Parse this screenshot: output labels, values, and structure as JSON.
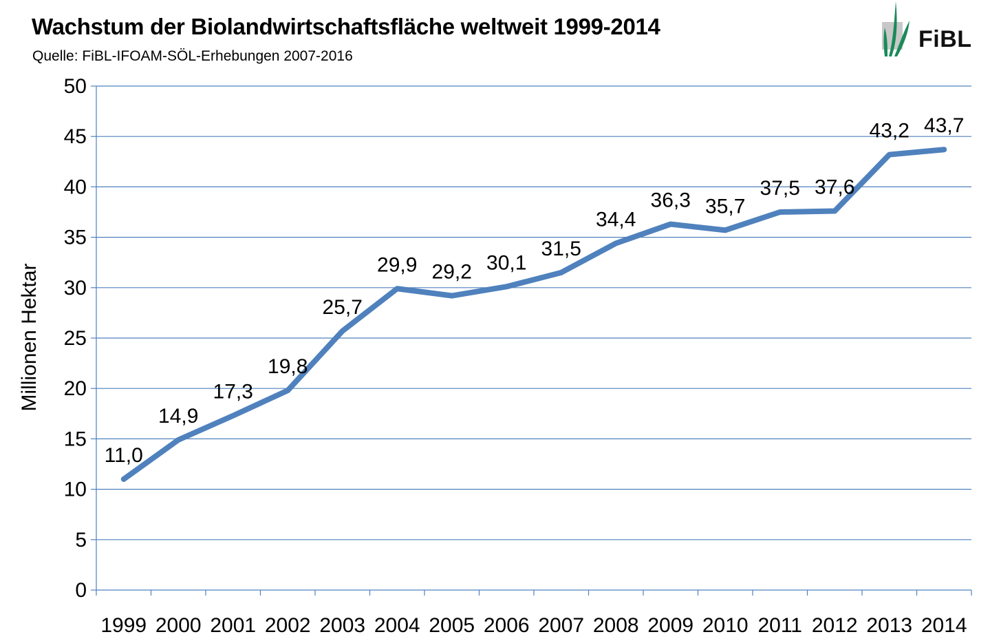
{
  "title": "Wachstum der Biolandwirtschaftsfläche weltweit 1999-2014",
  "subtitle": "Quelle: FiBL-IFOAM-SÖL-Erhebungen 2007-2016",
  "logo": {
    "text": "FiBL",
    "icon": "fibl-leaf-logo-icon",
    "colors": {
      "leaf": "#1a8a5a",
      "box": "#c8c8c8"
    }
  },
  "colors": {
    "line": "#4f81bd",
    "grid": "#4f81bd",
    "axis": "#4f81bd"
  },
  "chart_data": {
    "type": "line",
    "title": "Wachstum der Biolandwirtschaftsfläche weltweit 1999-2014",
    "subtitle": "Quelle: FiBL-IFOAM-SÖL-Erhebungen 2007-2016",
    "xlabel": "",
    "ylabel": "Millionen Hektar",
    "categories": [
      "1999",
      "2000",
      "2001",
      "2002",
      "2003",
      "2004",
      "2005",
      "2006",
      "2007",
      "2008",
      "2009",
      "2010",
      "2011",
      "2012",
      "2013",
      "2014"
    ],
    "values": [
      11.0,
      14.9,
      17.3,
      19.8,
      25.7,
      29.9,
      29.2,
      30.1,
      31.5,
      34.4,
      36.3,
      35.7,
      37.5,
      37.6,
      43.2,
      43.7
    ],
    "data_labels": [
      "11,0",
      "14,9",
      "17,3",
      "19,8",
      "25,7",
      "29,9",
      "29,2",
      "30,1",
      "31,5",
      "34,4",
      "36,3",
      "35,7",
      "37,5",
      "37,6",
      "43,2",
      "43,7"
    ],
    "ylim": [
      0,
      50
    ],
    "yticks": [
      "0",
      "5",
      "10",
      "15",
      "20",
      "25",
      "30",
      "35",
      "40",
      "45",
      "50"
    ],
    "grid": "horizontal",
    "legend": "none"
  }
}
